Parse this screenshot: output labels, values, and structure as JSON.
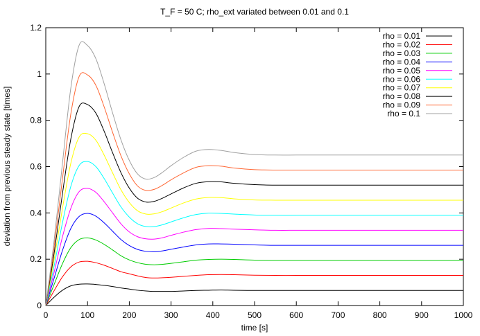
{
  "chart_data": {
    "type": "line",
    "title": "T_F = 50 C; rho_ext variated between 0.01 and 0.1",
    "xlabel": "time [s]",
    "ylabel": "deviation from previous steady state [times]",
    "xlim": [
      0,
      1000
    ],
    "ylim": [
      0,
      1.2
    ],
    "xticks": [
      0,
      100,
      200,
      300,
      400,
      500,
      600,
      700,
      800,
      900,
      1000
    ],
    "yticks": [
      0,
      0.2,
      0.4,
      0.6,
      0.8,
      1,
      1.2
    ],
    "xtick_labels": [
      "0",
      "100",
      "200",
      "300",
      "400",
      "500",
      "600",
      "700",
      "800",
      "900",
      "1000"
    ],
    "ytick_labels": [
      "0",
      "0.2",
      "0.4",
      "0.6",
      "0.8",
      "1",
      "1.2"
    ],
    "grid": false,
    "legend_position": "top-right",
    "x": [
      0,
      20,
      40,
      60,
      80,
      100,
      120,
      140,
      160,
      180,
      200,
      220,
      240,
      260,
      280,
      300,
      330,
      360,
      390,
      420,
      450,
      500,
      550,
      600,
      650,
      700,
      800,
      900,
      1000
    ],
    "series": [
      {
        "name": "rho = 0.01",
        "color": "#000000",
        "values": [
          0.0,
          0.036,
          0.066,
          0.085,
          0.092,
          0.093,
          0.091,
          0.087,
          0.082,
          0.076,
          0.071,
          0.066,
          0.063,
          0.061,
          0.061,
          0.061,
          0.063,
          0.065,
          0.066,
          0.067,
          0.066,
          0.065,
          0.065,
          0.065,
          0.065,
          0.065,
          0.065,
          0.065,
          0.065
        ]
      },
      {
        "name": "rho = 0.02",
        "color": "#ff0000",
        "values": [
          0.0,
          0.064,
          0.124,
          0.167,
          0.188,
          0.191,
          0.185,
          0.174,
          0.16,
          0.146,
          0.137,
          0.128,
          0.121,
          0.119,
          0.12,
          0.122,
          0.126,
          0.13,
          0.133,
          0.134,
          0.133,
          0.131,
          0.13,
          0.13,
          0.13,
          0.13,
          0.13,
          0.13,
          0.13
        ]
      },
      {
        "name": "rho = 0.03",
        "color": "#00cc00",
        "values": [
          0.0,
          0.091,
          0.181,
          0.25,
          0.285,
          0.292,
          0.283,
          0.264,
          0.24,
          0.215,
          0.197,
          0.185,
          0.178,
          0.176,
          0.178,
          0.182,
          0.189,
          0.196,
          0.199,
          0.2,
          0.199,
          0.196,
          0.195,
          0.195,
          0.195,
          0.195,
          0.195,
          0.195,
          0.195
        ]
      },
      {
        "name": "rho = 0.04",
        "color": "#0000ff",
        "values": [
          0.0,
          0.118,
          0.238,
          0.333,
          0.385,
          0.398,
          0.386,
          0.357,
          0.321,
          0.285,
          0.259,
          0.242,
          0.234,
          0.232,
          0.236,
          0.243,
          0.253,
          0.262,
          0.266,
          0.266,
          0.265,
          0.262,
          0.26,
          0.26,
          0.26,
          0.26,
          0.26,
          0.26,
          0.26
        ]
      },
      {
        "name": "rho = 0.05",
        "color": "#ff00ff",
        "values": [
          0.0,
          0.144,
          0.297,
          0.42,
          0.492,
          0.506,
          0.489,
          0.448,
          0.4,
          0.353,
          0.318,
          0.297,
          0.288,
          0.287,
          0.293,
          0.303,
          0.317,
          0.328,
          0.333,
          0.332,
          0.33,
          0.327,
          0.325,
          0.325,
          0.325,
          0.325,
          0.325,
          0.325,
          0.325
        ]
      },
      {
        "name": "rho = 0.06",
        "color": "#00ffff",
        "values": [
          0.0,
          0.171,
          0.358,
          0.515,
          0.605,
          0.622,
          0.6,
          0.548,
          0.486,
          0.426,
          0.382,
          0.353,
          0.341,
          0.341,
          0.349,
          0.361,
          0.379,
          0.393,
          0.399,
          0.398,
          0.395,
          0.391,
          0.39,
          0.39,
          0.39,
          0.39,
          0.39,
          0.39,
          0.39
        ]
      },
      {
        "name": "rho = 0.07",
        "color": "#ffff00",
        "values": [
          0.0,
          0.199,
          0.42,
          0.615,
          0.728,
          0.742,
          0.714,
          0.649,
          0.573,
          0.5,
          0.445,
          0.409,
          0.395,
          0.396,
          0.406,
          0.421,
          0.443,
          0.46,
          0.467,
          0.466,
          0.461,
          0.456,
          0.455,
          0.455,
          0.455,
          0.455,
          0.455,
          0.455,
          0.455
        ]
      },
      {
        "name": "rho = 0.08",
        "color": "#000000",
        "values": [
          0.0,
          0.226,
          0.484,
          0.72,
          0.86,
          0.868,
          0.831,
          0.752,
          0.66,
          0.574,
          0.507,
          0.463,
          0.447,
          0.45,
          0.464,
          0.482,
          0.508,
          0.528,
          0.535,
          0.534,
          0.528,
          0.522,
          0.52,
          0.52,
          0.52,
          0.52,
          0.52,
          0.52,
          0.52
        ]
      },
      {
        "name": "rho = 0.09",
        "color": "#ff6633",
        "values": [
          0.0,
          0.253,
          0.549,
          0.828,
          0.99,
          0.996,
          0.951,
          0.857,
          0.748,
          0.647,
          0.569,
          0.516,
          0.497,
          0.502,
          0.52,
          0.543,
          0.573,
          0.597,
          0.604,
          0.602,
          0.594,
          0.587,
          0.585,
          0.585,
          0.585,
          0.585,
          0.585,
          0.585,
          0.585
        ]
      },
      {
        "name": "rho = 0.1",
        "color": "#a0a0a0",
        "values": [
          0.0,
          0.281,
          0.615,
          0.94,
          1.125,
          1.123,
          1.066,
          0.957,
          0.832,
          0.716,
          0.627,
          0.568,
          0.546,
          0.553,
          0.576,
          0.604,
          0.64,
          0.667,
          0.674,
          0.67,
          0.661,
          0.652,
          0.65,
          0.65,
          0.65,
          0.65,
          0.65,
          0.65,
          0.65
        ]
      }
    ]
  }
}
